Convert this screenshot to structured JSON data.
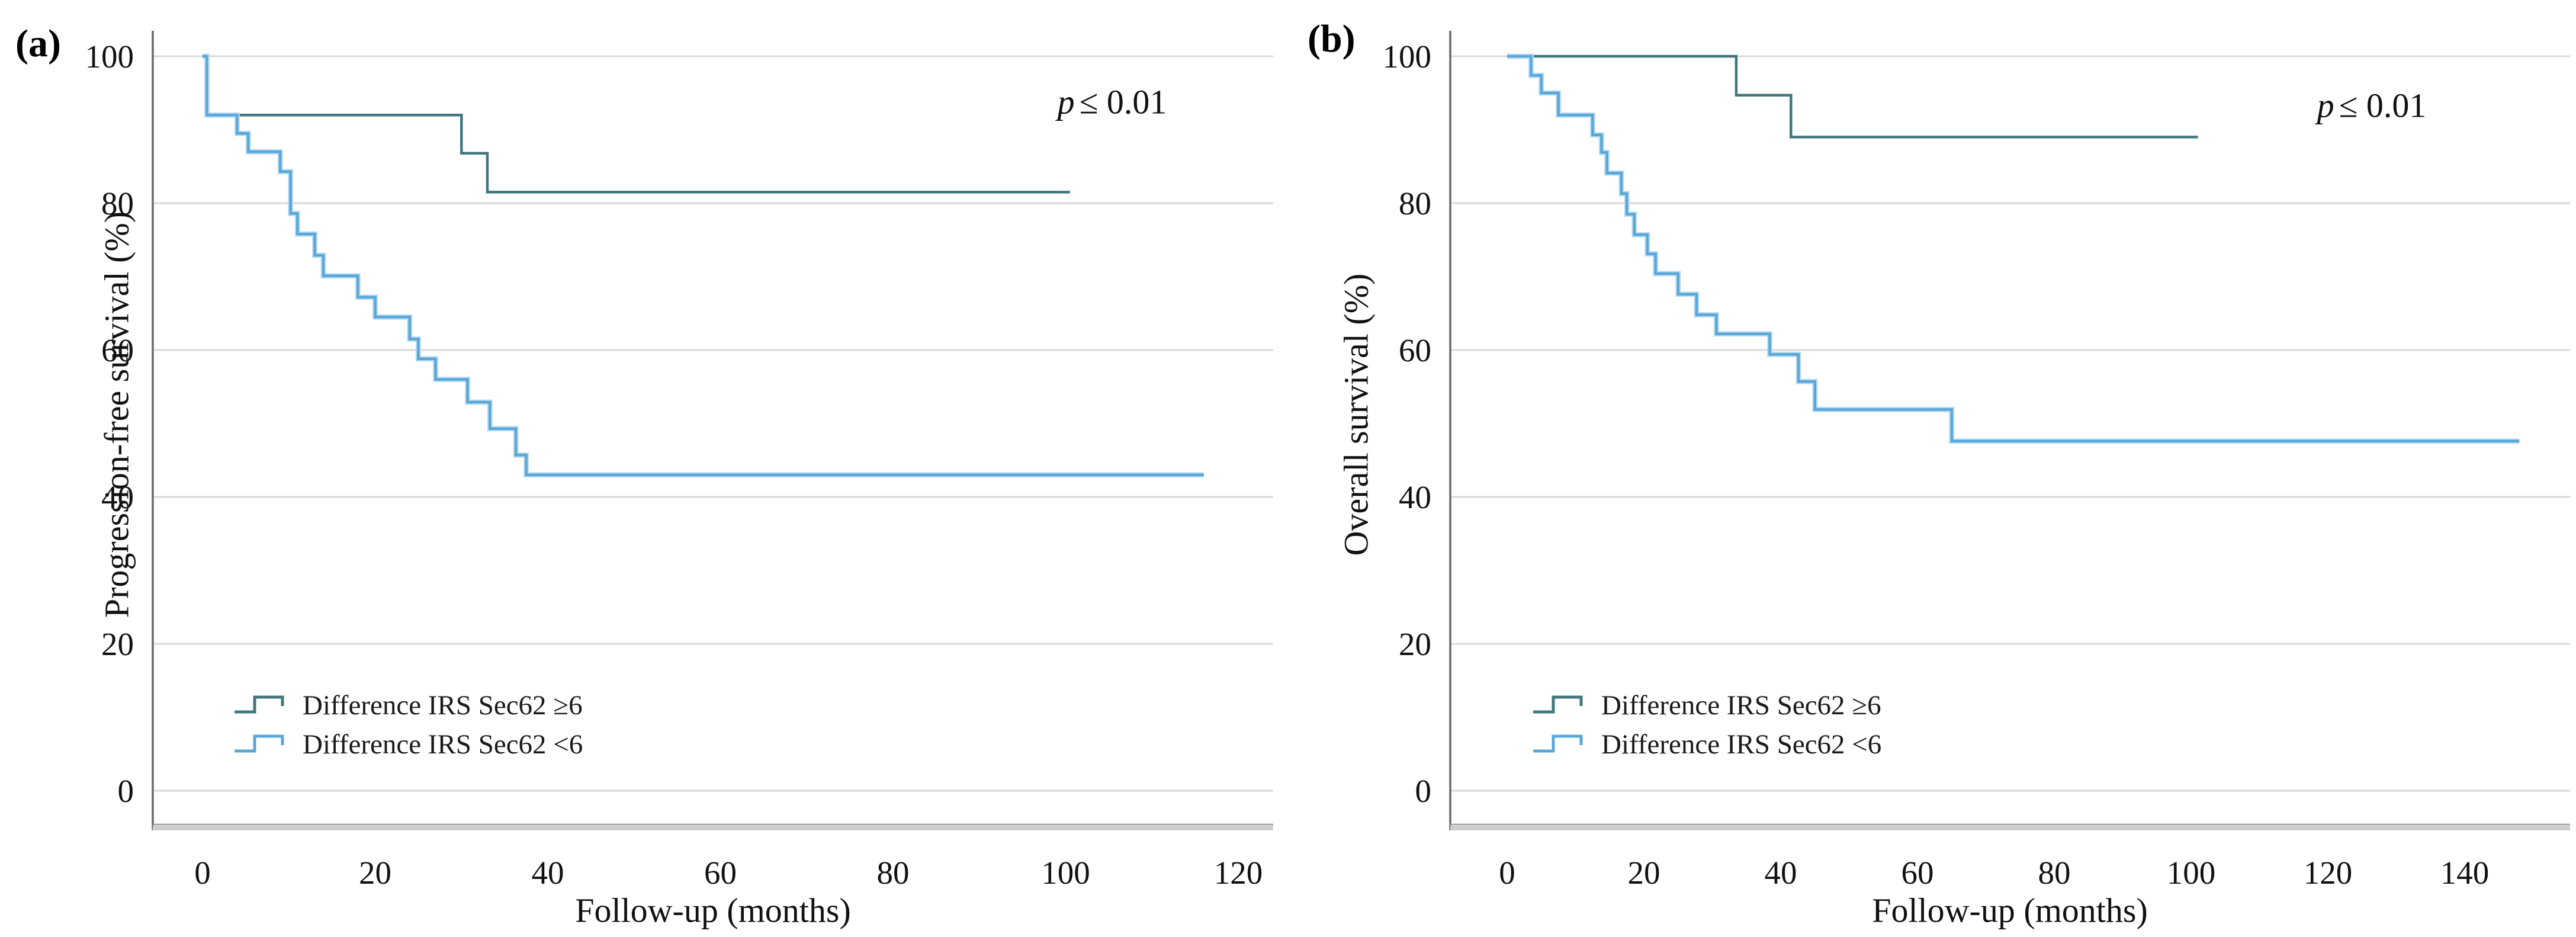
{
  "figure": {
    "description": "Two-panel Kaplan-Meier survival figure",
    "steps_semantics": "In each series, the first point [month, percent] is the curve start; every later point marks a vertical drop to that percent at that month, holding horizontally until the next point."
  },
  "chart_data": [
    {
      "type": "line",
      "curve_style": "kaplan-meier-step",
      "panel_tag": "(a)",
      "xlabel": "Follow-up (months)",
      "ylabel": "Progression-free survival (%)",
      "annotation": {
        "p_italic": "p",
        "p_rest": "≤ 0.01"
      },
      "xlim": [
        0,
        124
      ],
      "ylim": [
        0,
        100
      ],
      "xticks": [
        0,
        20,
        40,
        60,
        80,
        100,
        120
      ],
      "yticks": [
        0,
        20,
        40,
        60,
        80,
        100
      ],
      "grid": "horizontal",
      "legend_position": "lower-left-inside",
      "series": [
        {
          "name": "Difference IRS Sec62 ≥6",
          "color": "#41767c",
          "steps": [
            [
              0,
              100
            ],
            [
              0.5,
              92
            ],
            [
              30,
              86.8
            ],
            [
              33,
              81.5
            ],
            [
              100.5,
              81.5
            ]
          ]
        },
        {
          "name": "Difference IRS Sec62 <6",
          "color": "#58a7d9",
          "halo": "#bcdcf2",
          "steps": [
            [
              0,
              100
            ],
            [
              0.5,
              92
            ],
            [
              4,
              89.5
            ],
            [
              5.3,
              87
            ],
            [
              9,
              84.3
            ],
            [
              10.2,
              78.6
            ],
            [
              11,
              75.8
            ],
            [
              13,
              72.9
            ],
            [
              14,
              70.1
            ],
            [
              18,
              67.2
            ],
            [
              20,
              64.5
            ],
            [
              24,
              61.5
            ],
            [
              25,
              58.8
            ],
            [
              27,
              56
            ],
            [
              30.7,
              52.9
            ],
            [
              33.3,
              49.3
            ],
            [
              36.3,
              45.7
            ],
            [
              37.5,
              43
            ],
            [
              116,
              43
            ]
          ]
        }
      ]
    },
    {
      "type": "line",
      "curve_style": "kaplan-meier-step",
      "panel_tag": "(b)",
      "xlabel": "Follow-up (months)",
      "ylabel": "Overall survival (%)",
      "annotation": {
        "p_italic": "p",
        "p_rest": "≤ 0.01"
      },
      "xlim": [
        0,
        155
      ],
      "ylim": [
        0,
        100
      ],
      "xticks": [
        0,
        20,
        40,
        60,
        80,
        100,
        120,
        140
      ],
      "yticks": [
        0,
        20,
        40,
        60,
        80,
        100
      ],
      "grid": "horizontal",
      "legend_position": "lower-left-inside",
      "series": [
        {
          "name": "Difference IRS Sec62 ≥6",
          "color": "#41767c",
          "steps": [
            [
              0,
              100
            ],
            [
              33.5,
              94.7
            ],
            [
              41.5,
              89
            ],
            [
              101,
              89
            ]
          ]
        },
        {
          "name": "Difference IRS Sec62 <6",
          "color": "#58a7d9",
          "halo": "#bcdcf2",
          "steps": [
            [
              0,
              100
            ],
            [
              3.5,
              97.4
            ],
            [
              5,
              95
            ],
            [
              7.5,
              92
            ],
            [
              12.5,
              89.3
            ],
            [
              13.8,
              86.9
            ],
            [
              14.6,
              84.1
            ],
            [
              16.7,
              81.3
            ],
            [
              17.5,
              78.5
            ],
            [
              18.6,
              75.7
            ],
            [
              20.5,
              73.1
            ],
            [
              21.7,
              70.4
            ],
            [
              25,
              67.6
            ],
            [
              27.7,
              64.8
            ],
            [
              30.6,
              62.2
            ],
            [
              38.4,
              59.4
            ],
            [
              42.6,
              55.7
            ],
            [
              45,
              51.9
            ],
            [
              65,
              47.6
            ],
            [
              148,
              47.6
            ]
          ]
        }
      ]
    }
  ]
}
